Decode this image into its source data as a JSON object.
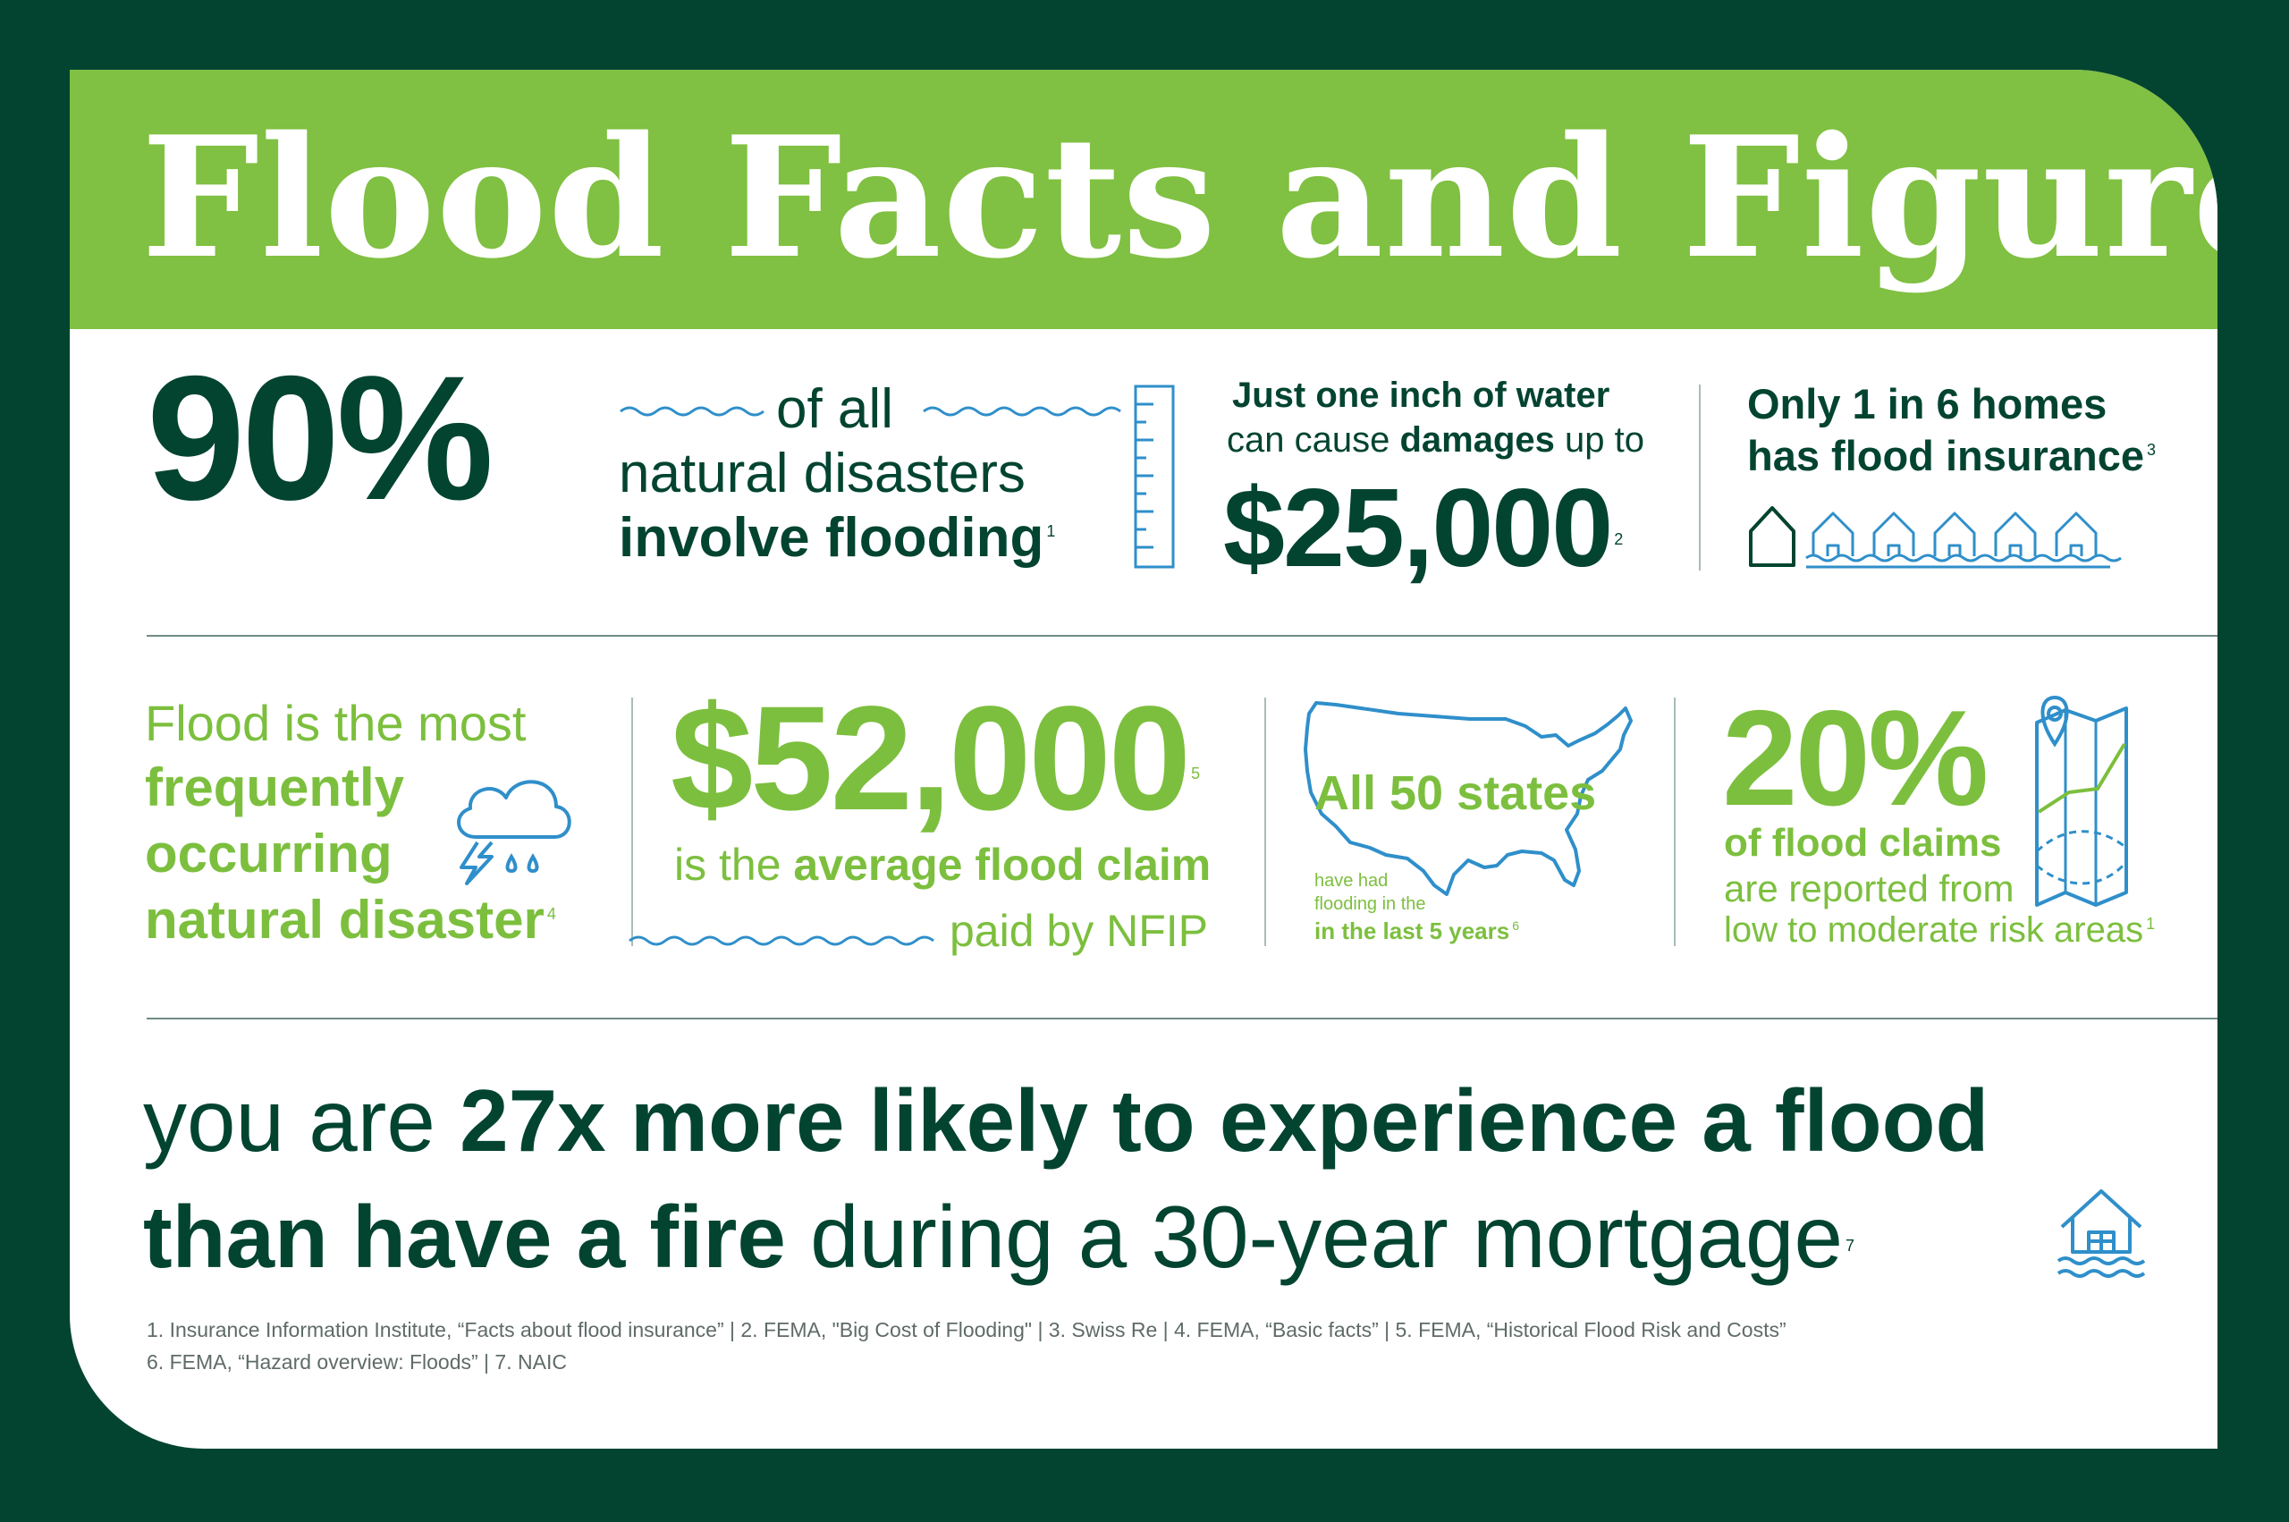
{
  "title": "Flood Facts and Figures",
  "stats": {
    "ninety": {
      "value": "90%",
      "line1": "of all",
      "line2": "natural disasters",
      "line3": "involve flooding",
      "ref": "1"
    },
    "inch": {
      "line1": "Just one inch of water",
      "line2_pre": "can cause ",
      "line2_bold": "damages",
      "line2_post": " up to",
      "value": "$25,000",
      "ref": "2"
    },
    "homes": {
      "line1": "Only 1 in 6 homes",
      "line2": "has flood insurance",
      "ref": "3"
    },
    "frequent": {
      "line1": "Flood is the most",
      "line2": "frequently",
      "line3": "occurring",
      "line4": "natural disaster",
      "ref": "4"
    },
    "claim": {
      "value": "$52,000",
      "ref": "5",
      "line1_pre": "is the ",
      "line1_bold": "average flood claim",
      "line2": "paid by NFIP"
    },
    "states": {
      "headline": "All 50 states",
      "line1": "have had",
      "line2": "flooding in the",
      "line3": "in the last 5 years",
      "ref": "6"
    },
    "twenty": {
      "value": "20%",
      "line1": "of flood claims",
      "line2": "are reported from",
      "line3": "low to moderate risk areas",
      "ref": "1"
    }
  },
  "fact": {
    "line1_pre": "you are ",
    "line1_bold": "27x more likely to experience a flood",
    "line2_bold": "than have a fire",
    "line2_post": " during a 30-year mortgage",
    "ref": "7"
  },
  "sources": {
    "line1": "1. Insurance Information Institute, “Facts about flood insurance”  |  2. FEMA, \"Big Cost of Flooding\"  |  3. Swiss Re  |  4. FEMA, “Basic facts”  |  5. FEMA, “Historical Flood Risk and Costs”",
    "line2": "6. FEMA,  “Hazard overview: Floods”  |  7. NAIC"
  },
  "colors": {
    "background": "#034431",
    "banner": "#80c042",
    "dark_green": "#034431",
    "light_green": "#7cbf3e",
    "icon_blue": "#2f8fca"
  },
  "icons": [
    "water-wave-icon",
    "ruler-gauge-icon",
    "house-icon",
    "flooded-house-icon",
    "storm-cloud-icon",
    "us-map-icon",
    "map-pin-icon",
    "flooded-home-icon"
  ]
}
